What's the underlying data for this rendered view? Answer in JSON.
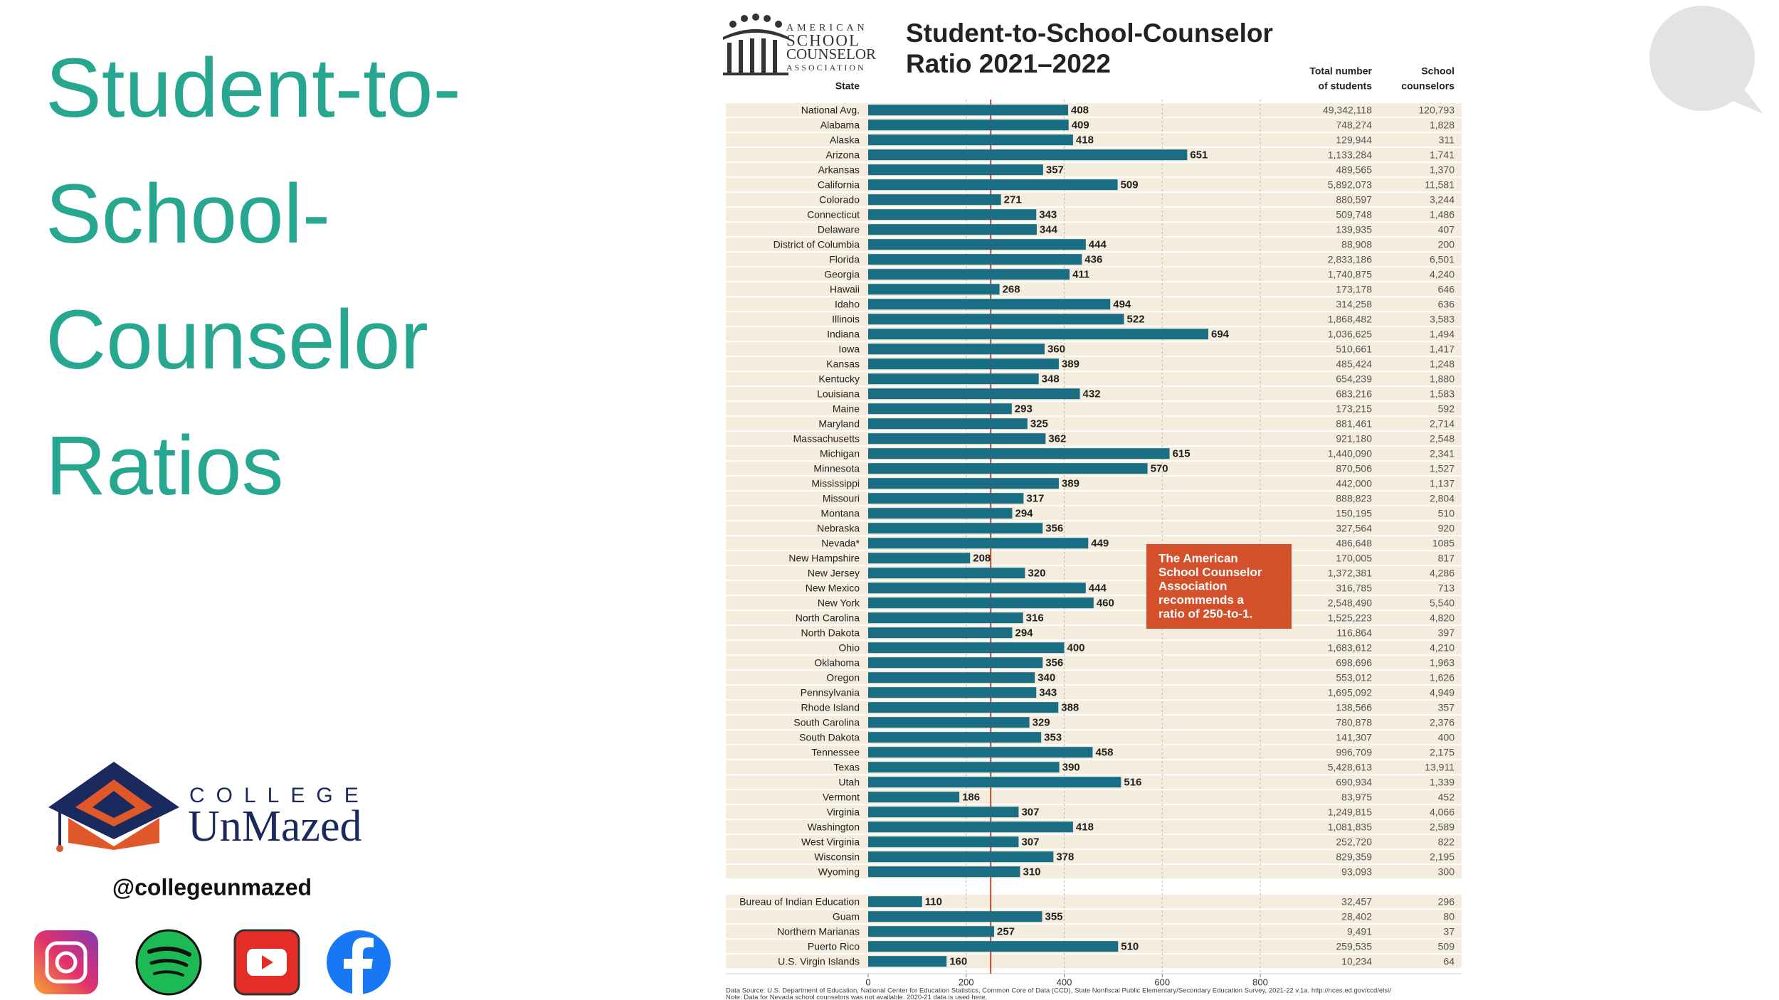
{
  "slide": {
    "title_lines": [
      "Student-to-",
      "School-",
      "Counselor",
      "Ratios"
    ],
    "brand_top": "COLLEGE",
    "brand_bottom": "UnMazed",
    "handle": "@collegeunmazed"
  },
  "logo_lines": [
    "AMERICAN",
    "SCHOOL",
    "COUNSELOR",
    "ASSOCIATION"
  ],
  "chart_data": {
    "type": "bar",
    "orientation": "horizontal",
    "title_lines": [
      "Student-to-School-Counselor",
      "Ratio 2021–2022"
    ],
    "category_header": "State",
    "categories": [
      "National Avg.",
      "Alabama",
      "Alaska",
      "Arizona",
      "Arkansas",
      "California",
      "Colorado",
      "Connecticut",
      "Delaware",
      "District of Columbia",
      "Florida",
      "Georgia",
      "Hawaii",
      "Idaho",
      "Illinois",
      "Indiana",
      "Iowa",
      "Kansas",
      "Kentucky",
      "Louisiana",
      "Maine",
      "Maryland",
      "Massachusetts",
      "Michigan",
      "Minnesota",
      "Mississippi",
      "Missouri",
      "Montana",
      "Nebraska",
      "Nevada*",
      "New Hampshire",
      "New Jersey",
      "New Mexico",
      "New York",
      "North Carolina",
      "North Dakota",
      "Ohio",
      "Oklahoma",
      "Oregon",
      "Pennsylvania",
      "Rhode Island",
      "South Carolina",
      "South Dakota",
      "Tennessee",
      "Texas",
      "Utah",
      "Vermont",
      "Virginia",
      "Washington",
      "West Virginia",
      "Wisconsin",
      "Wyoming",
      null,
      "Bureau of Indian Education",
      "Guam",
      "Northern Marianas",
      "Puerto Rico",
      "U.S. Virgin Islands"
    ],
    "values": [
      408,
      409,
      418,
      651,
      357,
      509,
      271,
      343,
      344,
      444,
      436,
      411,
      268,
      494,
      522,
      694,
      360,
      389,
      348,
      432,
      293,
      325,
      362,
      615,
      570,
      389,
      317,
      294,
      356,
      449,
      208,
      320,
      444,
      460,
      316,
      294,
      400,
      356,
      340,
      343,
      388,
      329,
      353,
      458,
      390,
      516,
      186,
      307,
      418,
      307,
      378,
      310,
      null,
      110,
      355,
      257,
      510,
      160
    ],
    "color": "#1a6e84",
    "xlim": [
      0,
      800
    ],
    "xticks": [
      0,
      200,
      400,
      600,
      800
    ],
    "grid": true,
    "reference_line": {
      "value": 250,
      "color": "#c8472c"
    },
    "annotation": {
      "lines": [
        "The American",
        "School Counselor",
        "Association",
        "recommends a",
        "ratio of 250-to-1."
      ],
      "color": "#d4502a"
    },
    "columns": [
      {
        "header": [
          "Total number",
          "of students"
        ],
        "values": [
          "49,342,118",
          "748,274",
          "129,944",
          "1,133,284",
          "489,565",
          "5,892,073",
          "880,597",
          "509,748",
          "139,935",
          "88,908",
          "2,833,186",
          "1,740,875",
          "173,178",
          "314,258",
          "1,868,482",
          "1,036,625",
          "510,661",
          "485,424",
          "654,239",
          "683,216",
          "173,215",
          "881,461",
          "921,180",
          "1,440,090",
          "870,506",
          "442,000",
          "888,823",
          "150,195",
          "327,564",
          "486,648",
          "170,005",
          "1,372,381",
          "316,785",
          "2,548,490",
          "1,525,223",
          "116,864",
          "1,683,612",
          "698,696",
          "553,012",
          "1,695,092",
          "138,566",
          "780,878",
          "141,307",
          "996,709",
          "5,428,613",
          "690,934",
          "83,975",
          "1,249,815",
          "1,081,835",
          "252,720",
          "829,359",
          "93,093",
          null,
          "32,457",
          "28,402",
          "9,491",
          "259,535",
          "10,234"
        ]
      },
      {
        "header": [
          "School",
          "counselors"
        ],
        "values": [
          "120,793",
          "1,828",
          "311",
          "1,741",
          "1,370",
          "11,581",
          "3,244",
          "1,486",
          "407",
          "200",
          "6,501",
          "4,240",
          "646",
          "636",
          "3,583",
          "1,494",
          "1,417",
          "1,248",
          "1,880",
          "1,583",
          "592",
          "2,714",
          "2,548",
          "2,341",
          "1,527",
          "1,137",
          "2,804",
          "510",
          "920",
          "1085",
          "817",
          "4,286",
          "713",
          "5,540",
          "4,820",
          "397",
          "4,210",
          "1,963",
          "1,626",
          "4,949",
          "357",
          "2,376",
          "400",
          "2,175",
          "13,911",
          "1,339",
          "452",
          "4,066",
          "2,589",
          "822",
          "2,195",
          "300",
          null,
          "296",
          "80",
          "37",
          "509",
          "64"
        ]
      }
    ],
    "notes": [
      "Data Source: U.S. Department of Education, National Center for Education Statistics, Common Core of Data (CCD), State Nonfiscal Public Elementary/Secondary Education Survey, 2021-22 v.1a. http://nces.ed.gov/ccd/elsi/",
      "Note: Data for Nevada school counselors was not available. 2020-21 data is used here."
    ]
  }
}
